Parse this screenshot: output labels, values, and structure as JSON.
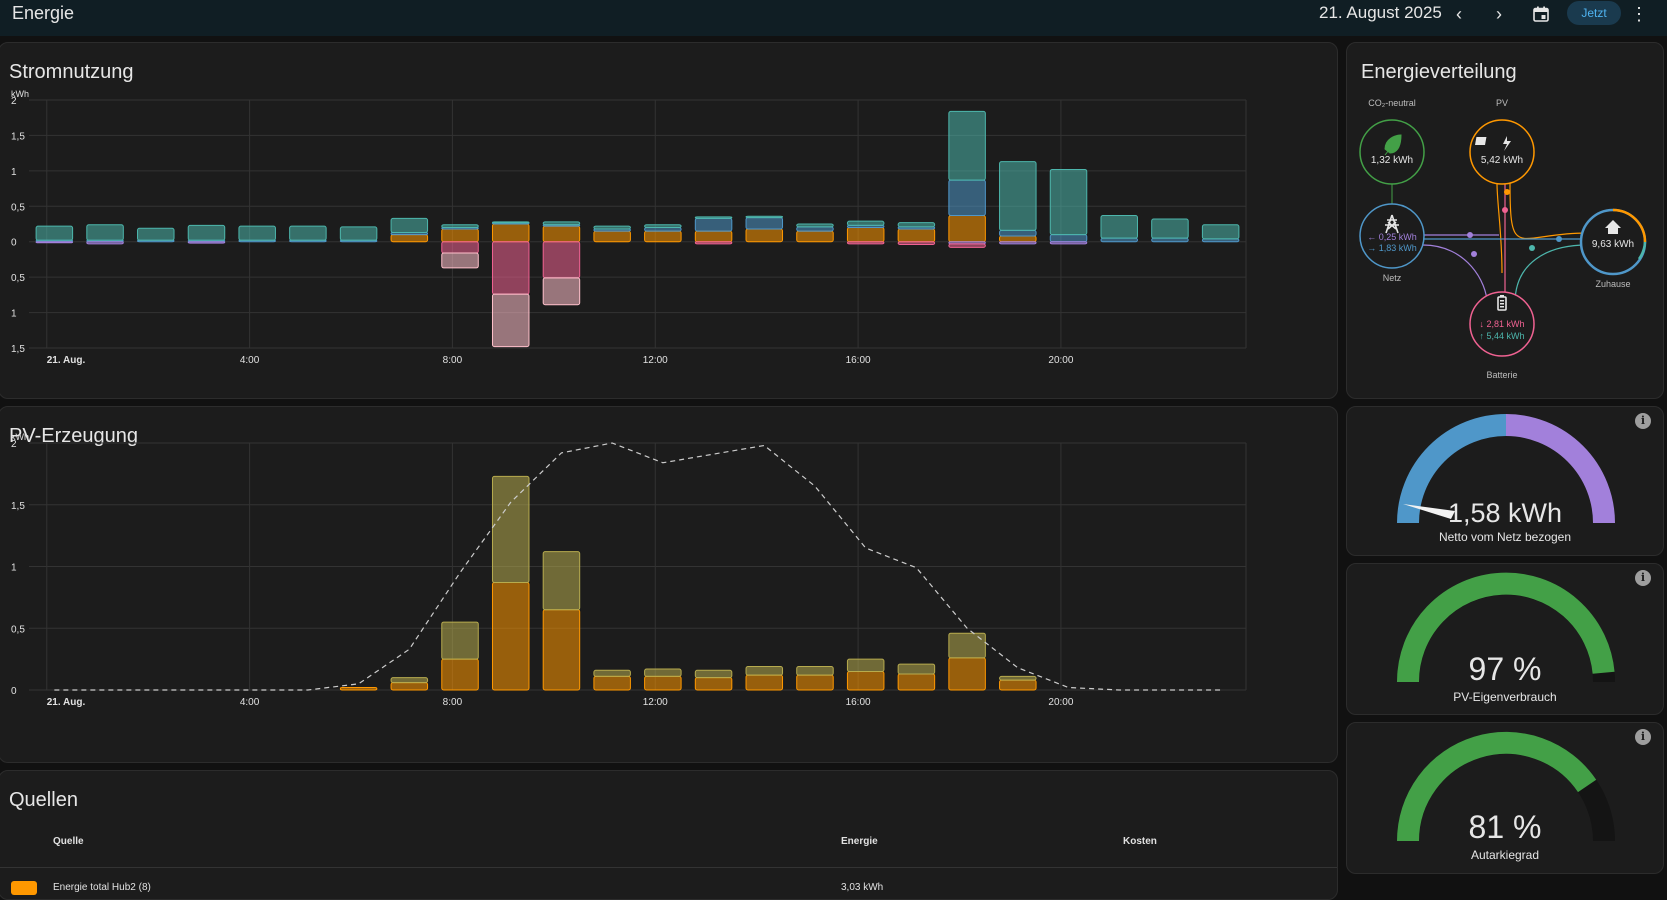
{
  "header": {
    "title": "Energie",
    "date": "21. August 2025",
    "today_label": "Jetzt"
  },
  "usage_card": {
    "title": "Stromnutzung",
    "unit": "kWh",
    "y_ticks_pos": [
      "2",
      "1,5",
      "1",
      "0,5",
      "0"
    ],
    "y_ticks_neg": [
      "0,5",
      "1",
      "1,5"
    ],
    "x_ticks": [
      "21. Aug.",
      "4:00",
      "8:00",
      "12:00",
      "16:00",
      "20:00"
    ]
  },
  "pv_card": {
    "title": "PV-Erzeugung",
    "unit": "kWh",
    "y_ticks": [
      "2",
      "1,5",
      "1",
      "0,5",
      "0"
    ],
    "x_ticks": [
      "21. Aug.",
      "4:00",
      "8:00",
      "12:00",
      "16:00",
      "20:00"
    ]
  },
  "sources_card": {
    "title": "Quellen",
    "col_source": "Quelle",
    "col_energy": "Energie",
    "col_cost": "Kosten",
    "row1_name": "Energie total Hub2 (8)",
    "row1_energy": "3,03 kWh"
  },
  "distribution": {
    "title": "Energieverteilung",
    "co2_label": "CO₂-neutral",
    "co2_value": "1,32 kWh",
    "pv_label": "PV",
    "pv_value": "5,42 kWh",
    "grid_label": "Netz",
    "grid_in": "← 0,25 kWh",
    "grid_out": "→ 1,83 kWh",
    "home_label": "Zuhause",
    "home_value": "9,63 kWh",
    "battery_label": "Batterie",
    "battery_out": "↓ 2,81 kWh",
    "battery_in": "↑ 5,44 kWh"
  },
  "gauges": {
    "grid_net_value": "1,58 kWh",
    "grid_net_label": "Netto vom Netz bezogen",
    "pv_self_value": "97 %",
    "pv_self_label": "PV-Eigenverbrauch",
    "pv_self_fraction": 0.97,
    "autarky_value": "81 %",
    "autarky_label": "Autarkiegrad",
    "autarky_fraction": 0.81
  },
  "colors": {
    "grid": "#4f97c9",
    "solar": "#ff9800",
    "battery_in": "#f06292",
    "battery_out": "#4db6ac",
    "return": "#a280db",
    "co2": "#43a047",
    "pv_prod": "#b7ab4e"
  },
  "chart_data": [
    {
      "type": "bar",
      "title": "Stromnutzung",
      "ylabel": "kWh",
      "ylim": [
        -1.5,
        2
      ],
      "x": [
        "0:00",
        "1:00",
        "2:00",
        "3:00",
        "4:00",
        "5:00",
        "6:00",
        "7:00",
        "8:00",
        "9:00",
        "10:00",
        "11:00",
        "12:00",
        "13:00",
        "14:00",
        "15:00",
        "16:00",
        "17:00",
        "18:00",
        "19:00",
        "20:00",
        "21:00",
        "22:00",
        "23:00"
      ],
      "series": [
        {
          "color": "#ff9800",
          "values": [
            0,
            0,
            0,
            0,
            0,
            0,
            0,
            0.1,
            0.18,
            0.25,
            0.22,
            0.15,
            0.15,
            0.15,
            0.18,
            0.15,
            0.2,
            0.18,
            0.37,
            0.08,
            0,
            0,
            0,
            0
          ]
        },
        {
          "color": "#4f97c9",
          "values": [
            0.02,
            0.02,
            0.02,
            0.02,
            0.02,
            0.02,
            0.02,
            0.03,
            0.02,
            0.02,
            0.02,
            0.03,
            0.05,
            0.18,
            0.16,
            0.06,
            0.03,
            0.03,
            0.5,
            0.08,
            0.1,
            0.05,
            0.05,
            0.04
          ]
        },
        {
          "color": "#4db6ac",
          "values": [
            0.2,
            0.22,
            0.17,
            0.21,
            0.2,
            0.2,
            0.19,
            0.2,
            0.04,
            0.01,
            0.04,
            0.04,
            0.04,
            0.02,
            0.02,
            0.04,
            0.06,
            0.06,
            0.97,
            0.97,
            0.92,
            0.32,
            0.27,
            0.2
          ]
        },
        {
          "color": "#a280db",
          "values": [
            -0.01,
            -0.03,
            0,
            -0.02,
            0,
            0,
            0,
            0,
            0,
            0,
            0,
            0,
            0,
            0,
            0,
            0,
            0,
            0,
            -0.03,
            -0.03,
            -0.03,
            0,
            0,
            0
          ]
        },
        {
          "color": "#f06292",
          "values": [
            0,
            0,
            0,
            0,
            0,
            0,
            0,
            0,
            -0.16,
            -0.74,
            -0.51,
            0,
            0,
            -0.03,
            0,
            0,
            -0.03,
            -0.04,
            -0.05,
            0,
            0,
            0,
            0,
            0
          ]
        },
        {
          "color": "#ffc0cb",
          "values": [
            0,
            0,
            0,
            0,
            0,
            0,
            0,
            0,
            -0.21,
            -0.74,
            -0.38,
            0,
            0,
            0,
            0,
            0,
            0,
            0,
            0,
            0,
            0,
            0,
            0,
            0
          ]
        }
      ]
    },
    {
      "type": "bar",
      "title": "PV-Erzeugung",
      "ylabel": "kWh",
      "ylim": [
        0,
        2
      ],
      "x": [
        "0:00",
        "1:00",
        "2:00",
        "3:00",
        "4:00",
        "5:00",
        "6:00",
        "7:00",
        "8:00",
        "9:00",
        "10:00",
        "11:00",
        "12:00",
        "13:00",
        "14:00",
        "15:00",
        "16:00",
        "17:00",
        "18:00",
        "19:00",
        "20:00",
        "21:00",
        "22:00",
        "23:00"
      ],
      "series": [
        {
          "color": "#ff9800",
          "values": [
            0,
            0,
            0,
            0,
            0,
            0,
            0.02,
            0.06,
            0.25,
            0.87,
            0.65,
            0.11,
            0.11,
            0.1,
            0.12,
            0.12,
            0.15,
            0.13,
            0.26,
            0.08,
            0,
            0,
            0,
            0
          ]
        },
        {
          "color": "#b7ab4e",
          "values": [
            0,
            0,
            0,
            0,
            0,
            0,
            0,
            0.04,
            0.3,
            0.86,
            0.47,
            0.05,
            0.06,
            0.06,
            0.07,
            0.07,
            0.1,
            0.08,
            0.2,
            0.03,
            0,
            0,
            0,
            0
          ]
        },
        {
          "type": "line",
          "color": "#cccccc",
          "values": [
            0,
            0,
            0,
            0,
            0,
            0,
            0.05,
            0.33,
            0.95,
            1.52,
            1.92,
            2.0,
            1.84,
            1.91,
            1.98,
            1.65,
            1.15,
            0.99,
            0.5,
            0.18,
            0.02,
            0,
            0,
            0
          ]
        }
      ]
    }
  ]
}
